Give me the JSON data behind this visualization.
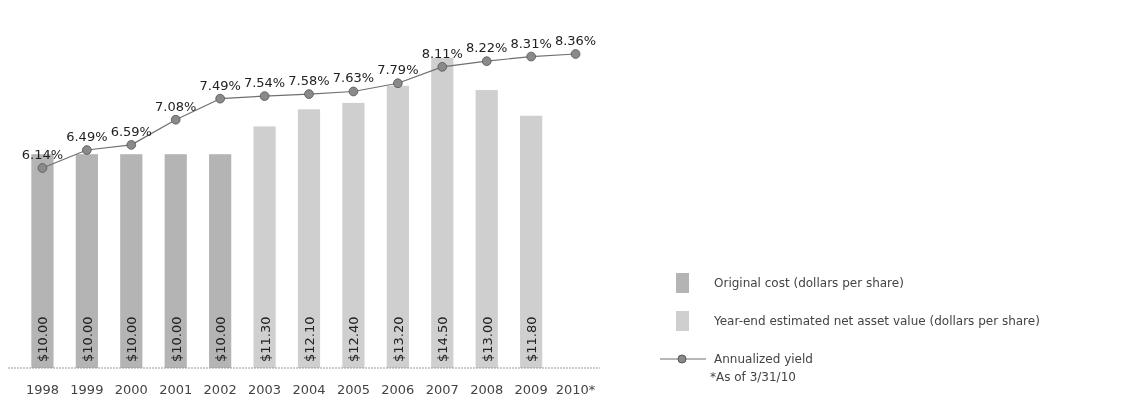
{
  "chart_data": {
    "type": "bar",
    "categories": [
      "1998",
      "1999",
      "2000",
      "2001",
      "2002",
      "2003",
      "2004",
      "2005",
      "2006",
      "2007",
      "2008",
      "2009",
      "2010*"
    ],
    "stacked": true,
    "tick_labels": "x",
    "legend": "right",
    "marker": "circle",
    "line_style": "solid",
    "series": [
      {
        "name": "Original cost (dollars per share)",
        "color": "#b4b4b4",
        "values": [
          10,
          10,
          10,
          10,
          10,
          null,
          null,
          null,
          null,
          null,
          null,
          null,
          null
        ],
        "value_labels": [
          "$10.00",
          "$10.00",
          "$10.00",
          "$10.00",
          "$10.00",
          null,
          null,
          null,
          null,
          null,
          null,
          null,
          null
        ]
      },
      {
        "name": "Year-end estimated net asset value (dollars per share)",
        "color": "#cfcfcf",
        "values": [
          null,
          null,
          null,
          null,
          null,
          11.3,
          12.1,
          12.4,
          13.2,
          14.5,
          13.0,
          11.8,
          null
        ],
        "value_labels": [
          null,
          null,
          null,
          null,
          null,
          "$11.30",
          "$12.10",
          "$12.40",
          "$13.20",
          "$14.50",
          "$13.00",
          "$11.80",
          null
        ]
      },
      {
        "name": "Annualized yield",
        "type": "line",
        "axis": "y2",
        "color": "#707070",
        "values": [
          6.14,
          6.49,
          6.59,
          7.08,
          7.49,
          7.54,
          7.58,
          7.63,
          7.79,
          8.11,
          8.22,
          8.31,
          8.36
        ],
        "value_labels": [
          "6.14%",
          "6.49%",
          "6.59%",
          "7.08%",
          "7.49%",
          "7.54%",
          "7.58%",
          "7.63%",
          "7.79%",
          "8.11%",
          "8.22%",
          "8.31%",
          "8.36%"
        ]
      }
    ],
    "annotations": [
      "*As of 3/31/10"
    ]
  }
}
